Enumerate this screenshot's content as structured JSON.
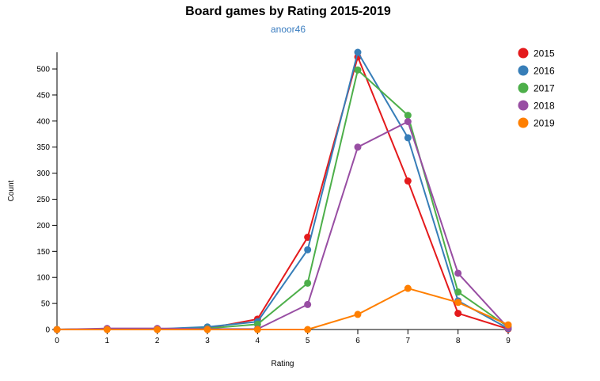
{
  "chart_data": {
    "type": "line",
    "title": "Board games by Rating 2015-2019",
    "subtitle": "anoor46",
    "xlabel": "Rating",
    "ylabel": "Count",
    "x": [
      0,
      1,
      2,
      3,
      4,
      5,
      6,
      7,
      8,
      9
    ],
    "xlim": [
      0,
      9
    ],
    "ylim": [
      0,
      532
    ],
    "yticks": [
      0,
      50,
      100,
      150,
      200,
      250,
      300,
      350,
      400,
      450,
      500
    ],
    "grid": false,
    "legend_position": "top-right",
    "series": [
      {
        "name": "2015",
        "color": "#e41a1c",
        "values": [
          0,
          1,
          1,
          2,
          20,
          177,
          523,
          285,
          31,
          1
        ]
      },
      {
        "name": "2016",
        "color": "#377eb8",
        "values": [
          0,
          1,
          1,
          5,
          15,
          153,
          532,
          368,
          55,
          2
        ]
      },
      {
        "name": "2017",
        "color": "#4daf4a",
        "values": [
          0,
          1,
          1,
          2,
          10,
          89,
          498,
          411,
          72,
          5
        ]
      },
      {
        "name": "2018",
        "color": "#984ea3",
        "values": [
          0,
          2,
          2,
          1,
          1,
          48,
          350,
          399,
          108,
          3
        ]
      },
      {
        "name": "2019",
        "color": "#ff7f00",
        "values": [
          0,
          0,
          0,
          0,
          0,
          0,
          29,
          79,
          52,
          9
        ]
      }
    ]
  }
}
